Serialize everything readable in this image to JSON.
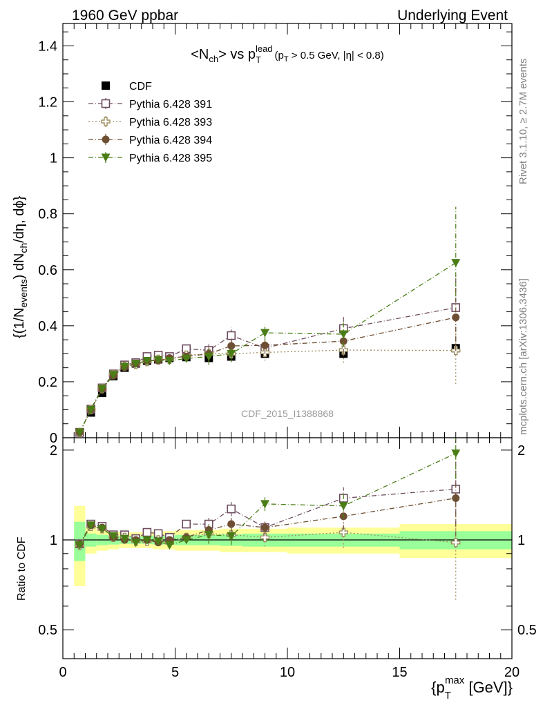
{
  "header": {
    "left": "1960 GeV ppbar",
    "right": "Underlying Event"
  },
  "side_labels": {
    "rivet": "Rivet 3.1.10, ≥ 2.7M events",
    "mcplots": "mcplots.cern.ch [arXiv:1306.3436]"
  },
  "watermark": "CDF_2015_I1388868",
  "chart_data": [
    {
      "type": "scatter",
      "title": "<Nch> vs pT^lead (pT > 0.5 GeV, |η| < 0.8)",
      "title_parts": {
        "a": "<N",
        "a_sub": "ch",
        "b": "> vs p",
        "b_sub": "T",
        "b_sup": "lead",
        "c": "(p",
        "c_sub": "T",
        "d": " > 0.5 GeV, |η| < 0.8)"
      },
      "ylabel_parts": {
        "a": "{(1/N",
        "a_sub": "events",
        "b": ") dN",
        "b_sub": "ch",
        "c": "/dη, dϕ}"
      },
      "xlim": [
        0,
        20
      ],
      "ylim": [
        0,
        1.48
      ],
      "yticks": [
        0,
        0.2,
        0.4,
        0.6,
        0.8,
        1,
        1.2,
        1.4
      ],
      "ytick_labels": [
        "0",
        "0.2",
        "0.4",
        "0.6",
        "0.8",
        "1",
        "1.2",
        "1.4"
      ],
      "legend_position": "top-left",
      "x": [
        0.75,
        1.25,
        1.75,
        2.25,
        2.75,
        3.25,
        3.75,
        4.25,
        4.75,
        5.5,
        6.5,
        7.5,
        9.0,
        12.5,
        17.5
      ],
      "series": [
        {
          "name": "CDF",
          "color": "#000000",
          "marker": "filled-square",
          "line": "none",
          "values": [
            0.02,
            0.09,
            0.16,
            0.22,
            0.25,
            0.265,
            0.275,
            0.28,
            0.285,
            0.288,
            0.285,
            0.29,
            0.3,
            0.3,
            0.32
          ]
        },
        {
          "name": "Pythia 6.428 391",
          "color": "#6d4b5e",
          "marker": "open-square",
          "line": "dashdot",
          "values": [
            0.019,
            0.102,
            0.178,
            0.228,
            0.26,
            0.268,
            0.29,
            0.295,
            0.29,
            0.318,
            0.312,
            0.365,
            0.32,
            0.39,
            0.465
          ]
        },
        {
          "name": "Pythia 6.428 393",
          "color": "#9c8e5f",
          "marker": "open-cross",
          "line": "dotted",
          "values": [
            0.019,
            0.1,
            0.175,
            0.225,
            0.255,
            0.262,
            0.272,
            0.28,
            0.28,
            0.295,
            0.3,
            0.3,
            0.305,
            0.313,
            0.312
          ]
        },
        {
          "name": "Pythia 6.428 394",
          "color": "#6e4f33",
          "marker": "filled-circle",
          "line": "dashdot",
          "values": [
            0.019,
            0.1,
            0.175,
            0.222,
            0.252,
            0.265,
            0.275,
            0.275,
            0.285,
            0.29,
            0.3,
            0.328,
            0.33,
            0.345,
            0.43
          ]
        },
        {
          "name": "Pythia 6.428 395",
          "color": "#4a7d16",
          "marker": "filled-triangle-down",
          "line": "dashdot",
          "values": [
            0.019,
            0.1,
            0.175,
            0.225,
            0.254,
            0.265,
            0.275,
            0.278,
            0.275,
            0.283,
            0.29,
            0.3,
            0.375,
            0.37,
            0.625
          ]
        }
      ]
    },
    {
      "type": "scatter",
      "title": "",
      "ylabel": "Ratio to CDF",
      "xlabel_parts": {
        "a": "{p",
        "a_sub": "T",
        "a_sup": "max",
        "b": " [GeV]}"
      },
      "xlim": [
        0,
        20
      ],
      "ylim": [
        0.4,
        2.2
      ],
      "log_y": true,
      "xticks": [
        0,
        5,
        10,
        15,
        20
      ],
      "xtick_labels": [
        "0",
        "5",
        "10",
        "15",
        "20"
      ],
      "yticks": [
        0.5,
        1,
        2
      ],
      "ytick_labels": [
        "0.5",
        "1",
        "2"
      ],
      "bands": {
        "x_edges": [
          0.5,
          1.0,
          1.5,
          2.0,
          2.5,
          3.0,
          3.5,
          4.0,
          4.5,
          5.0,
          6.0,
          7.0,
          8.0,
          10.0,
          15.0,
          20.0
        ],
        "yellow_half_width": [
          0.3,
          0.1,
          0.08,
          0.07,
          0.06,
          0.06,
          0.06,
          0.07,
          0.07,
          0.08,
          0.08,
          0.09,
          0.09,
          0.1,
          0.13
        ],
        "green_half_width": [
          0.15,
          0.05,
          0.04,
          0.035,
          0.03,
          0.03,
          0.03,
          0.035,
          0.035,
          0.04,
          0.04,
          0.045,
          0.05,
          0.05,
          0.07
        ],
        "yellow_color": "#ffff99",
        "green_color": "#99ff99"
      },
      "series": [
        {
          "name": "Pythia 6.428 391",
          "color": "#6d4b5e",
          "values": [
            0.97,
            1.13,
            1.11,
            1.04,
            1.04,
            1.01,
            1.06,
            1.05,
            1.02,
            1.13,
            1.13,
            1.27,
            1.1,
            1.38,
            1.48
          ]
        },
        {
          "name": "Pythia 6.428 393",
          "color": "#9c8e5f",
          "values": [
            0.96,
            1.11,
            1.09,
            1.02,
            1.02,
            0.99,
            0.99,
            1.0,
            0.98,
            1.02,
            1.05,
            1.04,
            1.02,
            1.06,
            0.98
          ]
        },
        {
          "name": "Pythia 6.428 394",
          "color": "#6e4f33",
          "values": [
            0.97,
            1.12,
            1.1,
            1.02,
            1.0,
            1.0,
            1.0,
            0.98,
            1.0,
            1.02,
            1.08,
            1.13,
            1.1,
            1.2,
            1.38
          ]
        },
        {
          "name": "Pythia 6.428 395",
          "color": "#4a7d16",
          "values": [
            0.96,
            1.12,
            1.09,
            1.03,
            1.01,
            0.98,
            1.0,
            0.99,
            0.96,
            1.0,
            1.04,
            1.03,
            1.32,
            1.3,
            1.95
          ]
        }
      ]
    }
  ]
}
